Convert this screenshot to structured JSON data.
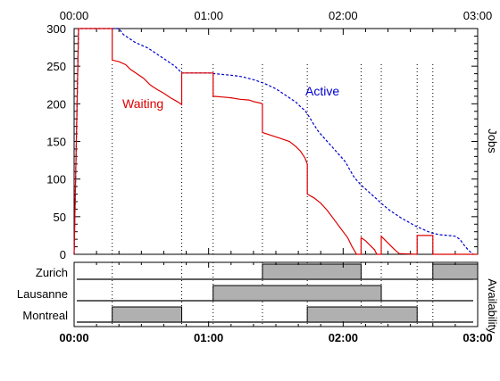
{
  "chart_data": [
    {
      "type": "line",
      "title": "",
      "xlabel": "",
      "ylabel": "Jobs",
      "x_unit": "minutes",
      "xlim": [
        0,
        180
      ],
      "ylim": [
        0,
        300
      ],
      "x_ticks": [
        0,
        60,
        120,
        180
      ],
      "x_tick_labels_top": [
        "00:00",
        "01:00",
        "02:00",
        "03:00"
      ],
      "y_ticks": [
        0,
        50,
        100,
        150,
        200,
        250,
        300
      ],
      "y_tick_labels": [
        "0",
        "50",
        "100",
        "150",
        "200",
        "250",
        "300"
      ],
      "grid": false,
      "legend": "inline labels",
      "series": [
        {
          "name": "Active",
          "color": "#0000cc",
          "style": "dashed",
          "points": [
            [
              0,
              0
            ],
            [
              2,
              300
            ],
            [
              17,
              300
            ],
            [
              20,
              300
            ],
            [
              22,
              292
            ],
            [
              24,
              288
            ],
            [
              27,
              282
            ],
            [
              30,
              278
            ],
            [
              33,
              274
            ],
            [
              36,
              268
            ],
            [
              39,
              262
            ],
            [
              42,
              256
            ],
            [
              45,
              250
            ],
            [
              47,
              244
            ],
            [
              48,
              241
            ],
            [
              50,
              241
            ],
            [
              55,
              241
            ],
            [
              60,
              241
            ],
            [
              63,
              240
            ],
            [
              66,
              239
            ],
            [
              70,
              238
            ],
            [
              75,
              236
            ],
            [
              80,
              232
            ],
            [
              85,
              227
            ],
            [
              90,
              220
            ],
            [
              93,
              214
            ],
            [
              96,
              208
            ],
            [
              99,
              202
            ],
            [
              101,
              196
            ],
            [
              103,
              191
            ],
            [
              105,
              182
            ],
            [
              107,
              172
            ],
            [
              109,
              163
            ],
            [
              112,
              153
            ],
            [
              115,
              143
            ],
            [
              118,
              133
            ],
            [
              121,
              123
            ],
            [
              123,
              112
            ],
            [
              125,
              102
            ],
            [
              128,
              92
            ],
            [
              131,
              84
            ],
            [
              134,
              76
            ],
            [
              137,
              68
            ],
            [
              140,
              60
            ],
            [
              143,
              54
            ],
            [
              146,
              48
            ],
            [
              149,
              43
            ],
            [
              152,
              38
            ],
            [
              155,
              34
            ],
            [
              158,
              30
            ],
            [
              160,
              28
            ],
            [
              163,
              26
            ],
            [
              167,
              25
            ],
            [
              170,
              24
            ],
            [
              172,
              20
            ],
            [
              174,
              12
            ],
            [
              176,
              5
            ],
            [
              178,
              0
            ]
          ]
        },
        {
          "name": "Waiting",
          "color": "#dd0000",
          "style": "solid",
          "points": [
            [
              0,
              0
            ],
            [
              2,
              300
            ],
            [
              17,
              300
            ],
            [
              17,
              258
            ],
            [
              20,
              256
            ],
            [
              23,
              252
            ],
            [
              25,
              246
            ],
            [
              28,
              240
            ],
            [
              31,
              234
            ],
            [
              34,
              225
            ],
            [
              37,
              219
            ],
            [
              40,
              214
            ],
            [
              43,
              208
            ],
            [
              46,
              203
            ],
            [
              48,
              199
            ],
            [
              48,
              241
            ],
            [
              62,
              241
            ],
            [
              62,
              210
            ],
            [
              66,
              209
            ],
            [
              70,
              208
            ],
            [
              74,
              206
            ],
            [
              78,
              205
            ],
            [
              80,
              203
            ],
            [
              83,
              201
            ],
            [
              84,
              200
            ],
            [
              84,
              162
            ],
            [
              88,
              158
            ],
            [
              92,
              154
            ],
            [
              96,
              150
            ],
            [
              99,
              143
            ],
            [
              101,
              137
            ],
            [
              103,
              128
            ],
            [
              104,
              120
            ],
            [
              104,
              80
            ],
            [
              107,
              75
            ],
            [
              110,
              68
            ],
            [
              113,
              58
            ],
            [
              116,
              46
            ],
            [
              119,
              34
            ],
            [
              122,
              22
            ],
            [
              124,
              10
            ],
            [
              126,
              0
            ],
            [
              128,
              0
            ],
            [
              128,
              22
            ],
            [
              130,
              18
            ],
            [
              132,
              12
            ],
            [
              134,
              6
            ],
            [
              135,
              0
            ],
            [
              137,
              0
            ],
            [
              137,
              24
            ],
            [
              139,
              18
            ],
            [
              141,
              12
            ],
            [
              143,
              6
            ],
            [
              145,
              1
            ],
            [
              153,
              0
            ],
            [
              153,
              25
            ],
            [
              160,
              25
            ],
            [
              160,
              0
            ],
            [
              180,
              0
            ]
          ]
        }
      ],
      "dotted_markers_x": [
        17,
        48,
        62,
        84,
        104,
        128,
        137,
        153,
        160
      ]
    },
    {
      "type": "gantt",
      "ylabel": "Availability",
      "x_tick_labels_bottom": [
        "00:00",
        "01:00",
        "02:00",
        "03:00"
      ],
      "rows": [
        {
          "name": "Zurich",
          "intervals": [
            [
              84,
              128
            ],
            [
              160,
              180
            ]
          ]
        },
        {
          "name": "Lausanne",
          "intervals": [
            [
              62,
              137
            ]
          ]
        },
        {
          "name": "Montreal",
          "intervals": [
            [
              17,
              48
            ],
            [
              104,
              153
            ]
          ]
        }
      ],
      "bar_color": "#b0b0b0"
    }
  ]
}
